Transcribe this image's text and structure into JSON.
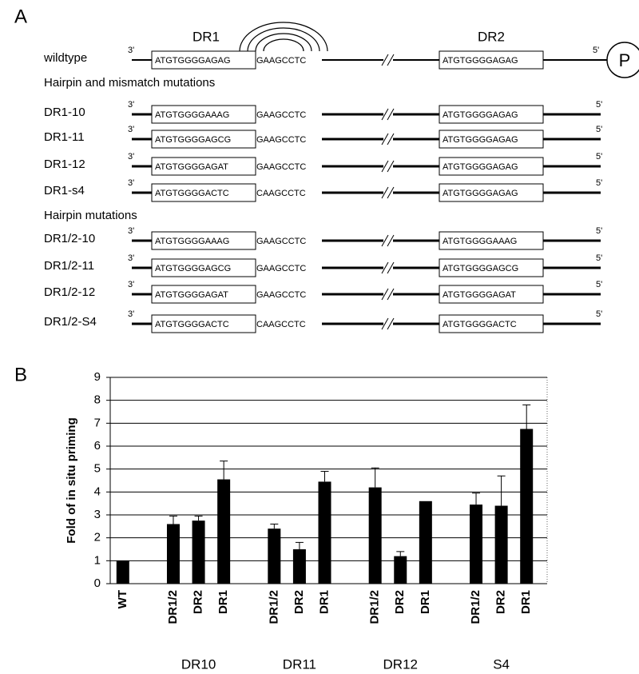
{
  "panel_a": {
    "label": "A",
    "dr1": "DR1",
    "dr2": "DR2",
    "p": "P",
    "three_prime": "3'",
    "five_prime": "5'",
    "section_1": "Hairpin and mismatch mutations",
    "section_2": "Hairpin mutations",
    "rows": [
      {
        "name": "wildtype",
        "dr1_seq": "ATGTGGGGAGAG",
        "flank": "GAAGCCTC",
        "dr2_seq": "ATGTGGGGAGAG"
      },
      {
        "name": "DR1-10",
        "dr1_seq": "ATGTGGGGAAAG",
        "flank": "GAAGCCTC",
        "dr2_seq": "ATGTGGGGAGAG"
      },
      {
        "name": "DR1-11",
        "dr1_seq": "ATGTGGGGAGCG",
        "flank": "GAAGCCTC",
        "dr2_seq": "ATGTGGGGAGAG"
      },
      {
        "name": "DR1-12",
        "dr1_seq": "ATGTGGGGAGAT",
        "flank": "GAAGCCTC",
        "dr2_seq": "ATGTGGGGAGAG"
      },
      {
        "name": "DR1-s4",
        "dr1_seq": "ATGTGGGGACTC",
        "flank": "CAAGCCTC",
        "dr2_seq": "ATGTGGGGAGAG"
      },
      {
        "name": "DR1/2-10",
        "dr1_seq": "ATGTGGGGAAAG",
        "flank": "GAAGCCTC",
        "dr2_seq": "ATGTGGGGAAAG"
      },
      {
        "name": "DR1/2-11",
        "dr1_seq": "ATGTGGGGAGCG",
        "flank": "GAAGCCTC",
        "dr2_seq": "ATGTGGGGAGCG"
      },
      {
        "name": "DR1/2-12",
        "dr1_seq": "ATGTGGGGAGAT",
        "flank": "GAAGCCTC",
        "dr2_seq": "ATGTGGGGAGAT"
      },
      {
        "name": "DR1/2-S4",
        "dr1_seq": "ATGTGGGGACTC",
        "flank": "CAAGCCTC",
        "dr2_seq": "ATGTGGGGACTC"
      }
    ]
  },
  "chart_data": {
    "type": "bar",
    "panel_label": "B",
    "y_label": "Fold of in situ priming",
    "categories": [
      "WT",
      null,
      "DR1/2",
      "DR2",
      "DR1",
      null,
      "DR1/2",
      "DR2",
      "DR1",
      null,
      "DR1/2",
      "DR2",
      "DR1",
      null,
      "DR1/2",
      "DR2",
      "DR1"
    ],
    "values": [
      1.0,
      null,
      2.6,
      2.75,
      4.55,
      null,
      2.4,
      1.5,
      4.45,
      null,
      4.2,
      1.2,
      3.6,
      null,
      3.45,
      3.4,
      6.75
    ],
    "errors": [
      null,
      null,
      0.35,
      0.2,
      0.8,
      null,
      0.2,
      0.3,
      0.45,
      null,
      0.85,
      0.2,
      null,
      null,
      0.5,
      1.3,
      1.05
    ],
    "groups": [
      "DR10",
      "DR11",
      "DR12",
      "S4"
    ],
    "color": "#000000",
    "ylim": [
      0,
      9
    ],
    "yticks": [
      0,
      1,
      2,
      3,
      4,
      5,
      6,
      7,
      8,
      9
    ],
    "grid": true
  }
}
